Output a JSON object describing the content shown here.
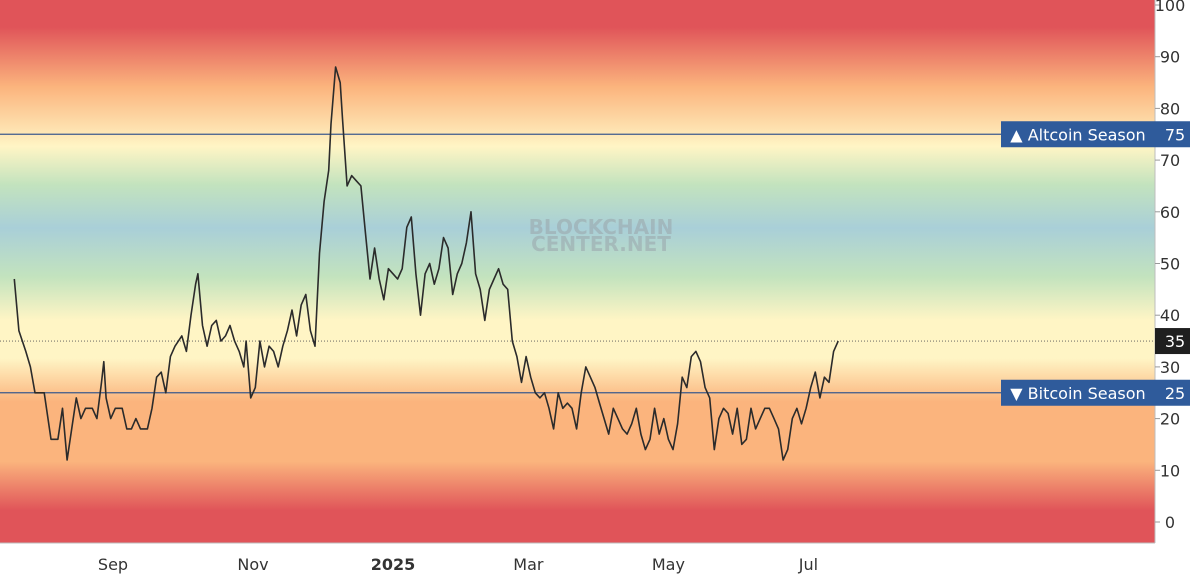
{
  "chart_data": {
    "type": "line",
    "title": "",
    "xlabel": "",
    "ylabel": "",
    "ylim": [
      -4,
      100
    ],
    "grid": false,
    "legend": "none",
    "watermark": "BLOCKCHAIN CENTER.NET",
    "x_ticks": [
      {
        "label": "Sep",
        "date": "2024-09-01",
        "bold": false
      },
      {
        "label": "Nov",
        "date": "2024-11-01",
        "bold": false
      },
      {
        "label": "2025",
        "date": "2025-01-01",
        "bold": true
      },
      {
        "label": "Mar",
        "date": "2025-03-01",
        "bold": false
      },
      {
        "label": "May",
        "date": "2025-05-01",
        "bold": false
      },
      {
        "label": "Jul",
        "date": "2025-07-01",
        "bold": false
      }
    ],
    "y_ticks": [
      0,
      10,
      20,
      30,
      40,
      50,
      60,
      70,
      80,
      90,
      100
    ],
    "reference_lines": [
      {
        "name": "altcoin",
        "label": "▲ Altcoin Season",
        "value": 75,
        "value_label": "75"
      },
      {
        "name": "bitcoin",
        "label": "▼ Bitcoin Season",
        "value": 25,
        "value_label": "25"
      }
    ],
    "current_value": {
      "value": 35,
      "value_label": "35"
    },
    "colors": {
      "line": "#2b2b2b",
      "reference_line": "#3d5a8c",
      "label_bg": "#2f5b9b",
      "label_text": "#ffffff",
      "current_bg": "#1f1f1f",
      "current_line": "#555555",
      "axis_text": "#333333",
      "watermark": "#9aa5aa",
      "band_red": "#e05459",
      "band_orange": "#fbb47d",
      "band_yellow": "#fff5c5",
      "band_green": "#c3e3be",
      "band_blue": "#a9cfd8"
    },
    "series": [
      {
        "values": [
          [
            "2024-07-20",
            47
          ],
          [
            "2024-07-22",
            37
          ],
          [
            "2024-07-25",
            33
          ],
          [
            "2024-07-27",
            30
          ],
          [
            "2024-07-29",
            25
          ],
          [
            "2024-08-02",
            25
          ],
          [
            "2024-08-05",
            16
          ],
          [
            "2024-08-08",
            16
          ],
          [
            "2024-08-10",
            22
          ],
          [
            "2024-08-12",
            12
          ],
          [
            "2024-08-14",
            18
          ],
          [
            "2024-08-16",
            24
          ],
          [
            "2024-08-18",
            20
          ],
          [
            "2024-08-20",
            22
          ],
          [
            "2024-08-23",
            22
          ],
          [
            "2024-08-25",
            20
          ],
          [
            "2024-08-27",
            27
          ],
          [
            "2024-08-28",
            31
          ],
          [
            "2024-08-29",
            24
          ],
          [
            "2024-08-31",
            20
          ],
          [
            "2024-09-02",
            22
          ],
          [
            "2024-09-05",
            22
          ],
          [
            "2024-09-07",
            18
          ],
          [
            "2024-09-09",
            18
          ],
          [
            "2024-09-11",
            20
          ],
          [
            "2024-09-13",
            18
          ],
          [
            "2024-09-16",
            18
          ],
          [
            "2024-09-18",
            22
          ],
          [
            "2024-09-20",
            28
          ],
          [
            "2024-09-22",
            29
          ],
          [
            "2024-09-24",
            25
          ],
          [
            "2024-09-26",
            32
          ],
          [
            "2024-09-28",
            34
          ],
          [
            "2024-10-01",
            36
          ],
          [
            "2024-10-03",
            33
          ],
          [
            "2024-10-05",
            40
          ],
          [
            "2024-10-07",
            46
          ],
          [
            "2024-10-08",
            48
          ],
          [
            "2024-10-10",
            38
          ],
          [
            "2024-10-12",
            34
          ],
          [
            "2024-10-14",
            38
          ],
          [
            "2024-10-16",
            39
          ],
          [
            "2024-10-18",
            35
          ],
          [
            "2024-10-20",
            36
          ],
          [
            "2024-10-22",
            38
          ],
          [
            "2024-10-24",
            35
          ],
          [
            "2024-10-26",
            33
          ],
          [
            "2024-10-28",
            30
          ],
          [
            "2024-10-29",
            35
          ],
          [
            "2024-10-31",
            24
          ],
          [
            "2024-11-02",
            26
          ],
          [
            "2024-11-04",
            35
          ],
          [
            "2024-11-06",
            30
          ],
          [
            "2024-11-08",
            34
          ],
          [
            "2024-11-10",
            33
          ],
          [
            "2024-11-12",
            30
          ],
          [
            "2024-11-14",
            34
          ],
          [
            "2024-11-16",
            37
          ],
          [
            "2024-11-18",
            41
          ],
          [
            "2024-11-20",
            36
          ],
          [
            "2024-11-22",
            42
          ],
          [
            "2024-11-24",
            44
          ],
          [
            "2024-11-26",
            37
          ],
          [
            "2024-11-28",
            34
          ],
          [
            "2024-11-30",
            52
          ],
          [
            "2024-12-02",
            62
          ],
          [
            "2024-12-04",
            68
          ],
          [
            "2024-12-05",
            77
          ],
          [
            "2024-12-07",
            88
          ],
          [
            "2024-12-09",
            85
          ],
          [
            "2024-12-10",
            78
          ],
          [
            "2024-12-12",
            65
          ],
          [
            "2024-12-14",
            67
          ],
          [
            "2024-12-16",
            66
          ],
          [
            "2024-12-18",
            65
          ],
          [
            "2024-12-20",
            56
          ],
          [
            "2024-12-22",
            47
          ],
          [
            "2024-12-24",
            53
          ],
          [
            "2024-12-26",
            47
          ],
          [
            "2024-12-28",
            43
          ],
          [
            "2024-12-30",
            49
          ],
          [
            "2025-01-01",
            48
          ],
          [
            "2025-01-03",
            47
          ],
          [
            "2025-01-05",
            49
          ],
          [
            "2025-01-07",
            57
          ],
          [
            "2025-01-09",
            59
          ],
          [
            "2025-01-11",
            48
          ],
          [
            "2025-01-13",
            40
          ],
          [
            "2025-01-15",
            48
          ],
          [
            "2025-01-17",
            50
          ],
          [
            "2025-01-19",
            46
          ],
          [
            "2025-01-21",
            49
          ],
          [
            "2025-01-23",
            55
          ],
          [
            "2025-01-25",
            53
          ],
          [
            "2025-01-27",
            44
          ],
          [
            "2025-01-29",
            48
          ],
          [
            "2025-01-31",
            50
          ],
          [
            "2025-02-02",
            54
          ],
          [
            "2025-02-04",
            60
          ],
          [
            "2025-02-06",
            48
          ],
          [
            "2025-02-08",
            45
          ],
          [
            "2025-02-10",
            39
          ],
          [
            "2025-02-12",
            45
          ],
          [
            "2025-02-14",
            47
          ],
          [
            "2025-02-16",
            49
          ],
          [
            "2025-02-18",
            46
          ],
          [
            "2025-02-20",
            45
          ],
          [
            "2025-02-22",
            35
          ],
          [
            "2025-02-24",
            32
          ],
          [
            "2025-02-26",
            27
          ],
          [
            "2025-02-28",
            32
          ],
          [
            "2025-03-02",
            28
          ],
          [
            "2025-03-04",
            25
          ],
          [
            "2025-03-06",
            24
          ],
          [
            "2025-03-08",
            25
          ],
          [
            "2025-03-10",
            22
          ],
          [
            "2025-03-12",
            18
          ],
          [
            "2025-03-14",
            25
          ],
          [
            "2025-03-16",
            22
          ],
          [
            "2025-03-18",
            23
          ],
          [
            "2025-03-20",
            22
          ],
          [
            "2025-03-22",
            18
          ],
          [
            "2025-03-24",
            25
          ],
          [
            "2025-03-26",
            30
          ],
          [
            "2025-03-28",
            28
          ],
          [
            "2025-03-30",
            26
          ],
          [
            "2025-04-01",
            23
          ],
          [
            "2025-04-03",
            20
          ],
          [
            "2025-04-05",
            17
          ],
          [
            "2025-04-07",
            22
          ],
          [
            "2025-04-09",
            20
          ],
          [
            "2025-04-11",
            18
          ],
          [
            "2025-04-13",
            17
          ],
          [
            "2025-04-15",
            19
          ],
          [
            "2025-04-17",
            22
          ],
          [
            "2025-04-19",
            17
          ],
          [
            "2025-04-21",
            14
          ],
          [
            "2025-04-23",
            16
          ],
          [
            "2025-04-25",
            22
          ],
          [
            "2025-04-27",
            17
          ],
          [
            "2025-04-29",
            20
          ],
          [
            "2025-05-01",
            16
          ],
          [
            "2025-05-03",
            14
          ],
          [
            "2025-05-05",
            19
          ],
          [
            "2025-05-07",
            28
          ],
          [
            "2025-05-09",
            26
          ],
          [
            "2025-05-11",
            32
          ],
          [
            "2025-05-13",
            33
          ],
          [
            "2025-05-15",
            31
          ],
          [
            "2025-05-17",
            26
          ],
          [
            "2025-05-19",
            24
          ],
          [
            "2025-05-21",
            14
          ],
          [
            "2025-05-23",
            20
          ],
          [
            "2025-05-25",
            22
          ],
          [
            "2025-05-27",
            21
          ],
          [
            "2025-05-29",
            17
          ],
          [
            "2025-05-31",
            22
          ],
          [
            "2025-06-02",
            15
          ],
          [
            "2025-06-04",
            16
          ],
          [
            "2025-06-06",
            22
          ],
          [
            "2025-06-08",
            18
          ],
          [
            "2025-06-10",
            20
          ],
          [
            "2025-06-12",
            22
          ],
          [
            "2025-06-14",
            22
          ],
          [
            "2025-06-16",
            20
          ],
          [
            "2025-06-18",
            18
          ],
          [
            "2025-06-20",
            12
          ],
          [
            "2025-06-22",
            14
          ],
          [
            "2025-06-24",
            20
          ],
          [
            "2025-06-26",
            22
          ],
          [
            "2025-06-28",
            19
          ],
          [
            "2025-06-30",
            22
          ],
          [
            "2025-07-02",
            26
          ],
          [
            "2025-07-04",
            29
          ],
          [
            "2025-07-06",
            24
          ],
          [
            "2025-07-08",
            28
          ],
          [
            "2025-07-10",
            27
          ],
          [
            "2025-07-12",
            33
          ],
          [
            "2025-07-14",
            35
          ]
        ]
      }
    ]
  }
}
